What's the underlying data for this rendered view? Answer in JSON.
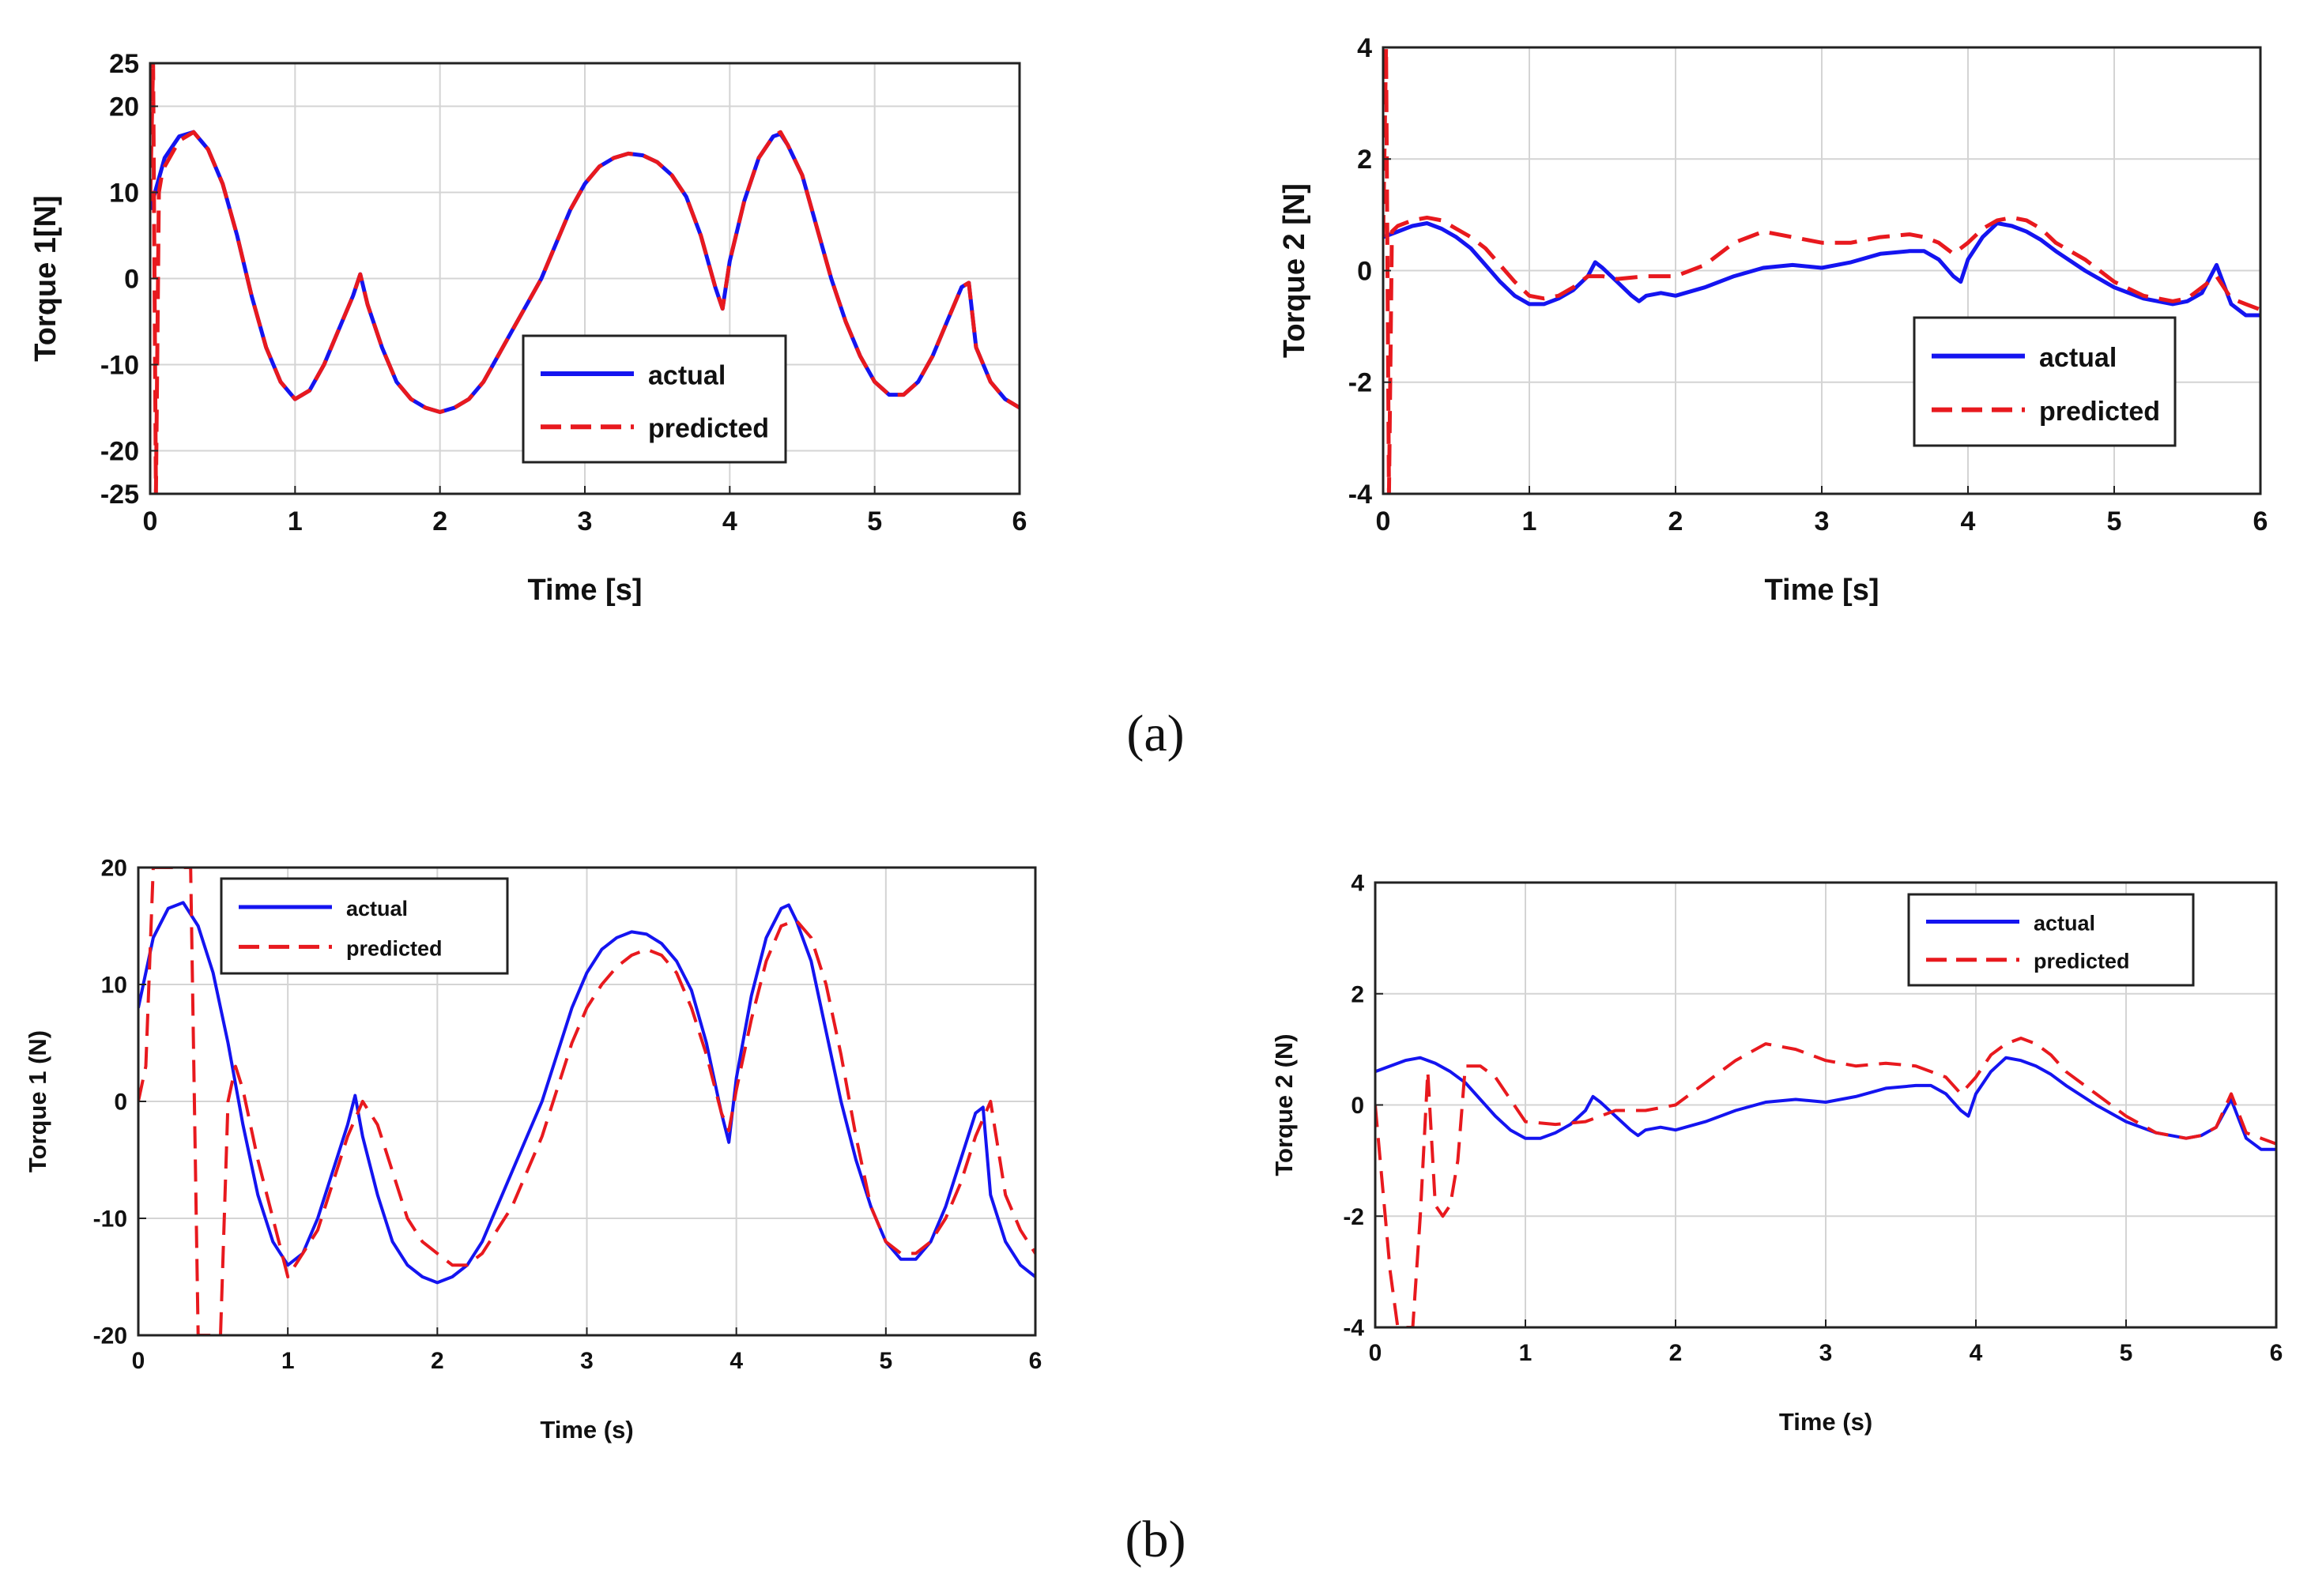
{
  "figure": {
    "caption_a": "(a)",
    "caption_b": "(b)"
  },
  "colors": {
    "actual": "#1414f0",
    "predicted": "#e8191e",
    "grid": "#d4d4d4",
    "axis": "#222222"
  },
  "chart_data": [
    {
      "id": "a1",
      "type": "line",
      "xlabel": "Time [s]",
      "ylabel": "Torque 1[N]",
      "xlim": [
        0,
        6
      ],
      "ylim": [
        -25,
        25
      ],
      "xticks": [
        "0",
        "1",
        "2",
        "3",
        "4",
        "5",
        "6"
      ],
      "yticks": [
        "-25",
        "-20",
        "-10",
        "0",
        "10",
        "20",
        "25"
      ],
      "ytick_values": [
        -25,
        -20,
        -10,
        0,
        10,
        20,
        25
      ],
      "legend": {
        "labels": [
          "actual",
          "predicted"
        ],
        "placement": "center-right"
      },
      "series": [
        {
          "name": "actual",
          "style": "solid",
          "x": [
            0,
            0.1,
            0.2,
            0.3,
            0.4,
            0.5,
            0.6,
            0.7,
            0.8,
            0.9,
            1.0,
            1.1,
            1.2,
            1.3,
            1.4,
            1.45,
            1.5,
            1.6,
            1.7,
            1.8,
            1.9,
            2.0,
            2.1,
            2.2,
            2.3,
            2.4,
            2.5,
            2.6,
            2.7,
            2.8,
            2.9,
            3.0,
            3.1,
            3.2,
            3.3,
            3.4,
            3.5,
            3.6,
            3.7,
            3.8,
            3.9,
            3.95,
            4.0,
            4.1,
            4.2,
            4.3,
            4.35,
            4.4,
            4.5,
            4.6,
            4.7,
            4.8,
            4.9,
            5.0,
            5.1,
            5.2,
            5.3,
            5.4,
            5.5,
            5.6,
            5.65,
            5.7,
            5.8,
            5.9,
            6.0
          ],
          "y": [
            8,
            14,
            16.5,
            17,
            15,
            11,
            5,
            -2,
            -8,
            -12,
            -14,
            -13,
            -10,
            -6,
            -2,
            0.5,
            -3,
            -8,
            -12,
            -14,
            -15,
            -15.5,
            -15,
            -14,
            -12,
            -9,
            -6,
            -3,
            0,
            4,
            8,
            11,
            13,
            14,
            14.5,
            14.3,
            13.5,
            12,
            9.5,
            5,
            -1,
            -3.5,
            2,
            9,
            14,
            16.5,
            16.8,
            15.5,
            12,
            6,
            0,
            -5,
            -9,
            -12,
            -13.5,
            -13.5,
            -12,
            -9,
            -5,
            -1,
            -0.5,
            -8,
            -12,
            -14,
            -15
          ]
        },
        {
          "name": "predicted",
          "style": "dashed",
          "x": [
            0,
            0.02,
            0.04,
            0.06,
            0.08,
            0.1,
            0.2,
            0.3,
            0.4,
            0.5,
            0.6,
            0.7,
            0.8,
            0.9,
            1.0,
            1.1,
            1.2,
            1.3,
            1.4,
            1.45,
            1.5,
            1.6,
            1.7,
            1.8,
            1.9,
            2.0,
            2.1,
            2.2,
            2.3,
            2.4,
            2.5,
            2.6,
            2.7,
            2.8,
            2.9,
            3.0,
            3.1,
            3.2,
            3.3,
            3.4,
            3.5,
            3.6,
            3.7,
            3.8,
            3.9,
            3.95,
            4.0,
            4.1,
            4.2,
            4.3,
            4.35,
            4.4,
            4.5,
            4.6,
            4.7,
            4.8,
            4.9,
            5.0,
            5.1,
            5.2,
            5.3,
            5.4,
            5.5,
            5.6,
            5.65,
            5.7,
            5.8,
            5.9,
            6.0
          ],
          "y": [
            9,
            25,
            -25,
            10,
            12,
            13,
            16,
            17,
            15,
            11,
            5,
            -2,
            -8,
            -12,
            -14,
            -13,
            -10,
            -6,
            -2,
            0.5,
            -3,
            -8,
            -12,
            -14,
            -15,
            -15.5,
            -15,
            -14,
            -12,
            -9,
            -6,
            -3,
            0,
            4,
            8,
            11,
            13,
            14,
            14.5,
            14.3,
            13.5,
            12,
            9.5,
            5,
            -1,
            -3.5,
            2,
            9,
            14,
            16.5,
            17,
            15.5,
            12,
            6,
            0,
            -5,
            -9,
            -12,
            -13.5,
            -13.5,
            -12,
            -9,
            -5,
            -1,
            -0.5,
            -8,
            -12,
            -14,
            -15
          ]
        }
      ]
    },
    {
      "id": "a2",
      "type": "line",
      "xlabel": "Time [s]",
      "ylabel": "Torque 2 [N]",
      "xlim": [
        0,
        6
      ],
      "ylim": [
        -4,
        4
      ],
      "xticks": [
        "0",
        "1",
        "2",
        "3",
        "4",
        "5",
        "6"
      ],
      "yticks": [
        "-4",
        "-2",
        "0",
        "2",
        "4"
      ],
      "ytick_values": [
        -4,
        -2,
        0,
        2,
        4
      ],
      "legend": {
        "labels": [
          "actual",
          "predicted"
        ],
        "placement": "lower-right"
      },
      "series": [
        {
          "name": "actual",
          "style": "solid",
          "x": [
            0,
            0.1,
            0.2,
            0.3,
            0.4,
            0.5,
            0.6,
            0.7,
            0.8,
            0.9,
            1.0,
            1.1,
            1.2,
            1.3,
            1.4,
            1.45,
            1.5,
            1.6,
            1.7,
            1.75,
            1.8,
            1.9,
            2.0,
            2.2,
            2.4,
            2.6,
            2.8,
            3.0,
            3.2,
            3.4,
            3.6,
            3.7,
            3.8,
            3.9,
            3.95,
            4.0,
            4.1,
            4.2,
            4.3,
            4.4,
            4.5,
            4.6,
            4.8,
            5.0,
            5.2,
            5.4,
            5.5,
            5.6,
            5.7,
            5.8,
            5.9,
            6.0
          ],
          "y": [
            0.6,
            0.7,
            0.8,
            0.85,
            0.75,
            0.6,
            0.4,
            0.1,
            -0.2,
            -0.45,
            -0.6,
            -0.6,
            -0.5,
            -0.35,
            -0.1,
            0.15,
            0.05,
            -0.2,
            -0.45,
            -0.55,
            -0.45,
            -0.4,
            -0.45,
            -0.3,
            -0.1,
            0.05,
            0.1,
            0.05,
            0.15,
            0.3,
            0.35,
            0.35,
            0.2,
            -0.1,
            -0.2,
            0.2,
            0.6,
            0.85,
            0.8,
            0.7,
            0.55,
            0.35,
            0,
            -0.3,
            -0.5,
            -0.6,
            -0.55,
            -0.4,
            0.1,
            -0.6,
            -0.8,
            -0.8
          ]
        },
        {
          "name": "predicted",
          "style": "dashed",
          "x": [
            0,
            0.02,
            0.04,
            0.06,
            0.1,
            0.2,
            0.3,
            0.4,
            0.5,
            0.6,
            0.7,
            0.8,
            0.9,
            1.0,
            1.1,
            1.2,
            1.3,
            1.4,
            1.5,
            1.6,
            1.8,
            2.0,
            2.2,
            2.4,
            2.6,
            2.8,
            3.0,
            3.2,
            3.4,
            3.6,
            3.7,
            3.8,
            3.9,
            4.0,
            4.1,
            4.2,
            4.3,
            4.4,
            4.5,
            4.6,
            4.8,
            5.0,
            5.2,
            5.4,
            5.5,
            5.6,
            5.7,
            5.8,
            5.9,
            6.0
          ],
          "y": [
            0.6,
            4,
            -4,
            0.7,
            0.8,
            0.9,
            0.95,
            0.9,
            0.75,
            0.6,
            0.4,
            0.1,
            -0.2,
            -0.45,
            -0.5,
            -0.45,
            -0.3,
            -0.1,
            -0.1,
            -0.15,
            -0.1,
            -0.1,
            0.1,
            0.5,
            0.7,
            0.6,
            0.5,
            0.5,
            0.6,
            0.65,
            0.6,
            0.5,
            0.3,
            0.5,
            0.75,
            0.9,
            0.95,
            0.9,
            0.75,
            0.5,
            0.2,
            -0.2,
            -0.45,
            -0.55,
            -0.5,
            -0.3,
            -0.1,
            -0.5,
            -0.6,
            -0.7
          ]
        }
      ]
    },
    {
      "id": "b1",
      "type": "line",
      "xlabel": "Time (s)",
      "ylabel": "Torque 1 (N)",
      "xlim": [
        0,
        6
      ],
      "ylim": [
        -20,
        20
      ],
      "xticks": [
        "0",
        "1",
        "2",
        "3",
        "4",
        "5",
        "6"
      ],
      "yticks": [
        "-20",
        "-10",
        "0",
        "10",
        "20"
      ],
      "ytick_values": [
        -20,
        -10,
        0,
        10,
        20
      ],
      "legend": {
        "labels": [
          "actual",
          "predicted"
        ],
        "placement": "top-left"
      },
      "series": [
        {
          "name": "actual",
          "style": "solid",
          "x": [
            0,
            0.1,
            0.2,
            0.3,
            0.4,
            0.5,
            0.6,
            0.7,
            0.8,
            0.9,
            1.0,
            1.1,
            1.2,
            1.3,
            1.4,
            1.45,
            1.5,
            1.6,
            1.7,
            1.8,
            1.9,
            2.0,
            2.1,
            2.2,
            2.3,
            2.4,
            2.5,
            2.6,
            2.7,
            2.8,
            2.9,
            3.0,
            3.1,
            3.2,
            3.3,
            3.4,
            3.5,
            3.6,
            3.7,
            3.8,
            3.9,
            3.95,
            4.0,
            4.1,
            4.2,
            4.3,
            4.35,
            4.4,
            4.5,
            4.6,
            4.7,
            4.8,
            4.9,
            5.0,
            5.1,
            5.2,
            5.3,
            5.4,
            5.5,
            5.6,
            5.65,
            5.7,
            5.8,
            5.9,
            6.0
          ],
          "y": [
            8,
            14,
            16.5,
            17,
            15,
            11,
            5,
            -2,
            -8,
            -12,
            -14,
            -13,
            -10,
            -6,
            -2,
            0.5,
            -3,
            -8,
            -12,
            -14,
            -15,
            -15.5,
            -15,
            -14,
            -12,
            -9,
            -6,
            -3,
            0,
            4,
            8,
            11,
            13,
            14,
            14.5,
            14.3,
            13.5,
            12,
            9.5,
            5,
            -1,
            -3.5,
            2,
            9,
            14,
            16.5,
            16.8,
            15.5,
            12,
            6,
            0,
            -5,
            -9,
            -12,
            -13.5,
            -13.5,
            -12,
            -9,
            -5,
            -1,
            -0.5,
            -8,
            -12,
            -14,
            -15
          ]
        },
        {
          "name": "predicted",
          "style": "dashed",
          "x": [
            0,
            0.05,
            0.1,
            0.15,
            0.35,
            0.4,
            0.45,
            0.55,
            0.6,
            0.65,
            0.7,
            0.8,
            0.9,
            1.0,
            1.1,
            1.2,
            1.3,
            1.4,
            1.5,
            1.6,
            1.7,
            1.8,
            1.9,
            2.0,
            2.1,
            2.2,
            2.3,
            2.4,
            2.5,
            2.6,
            2.7,
            2.8,
            2.9,
            3.0,
            3.1,
            3.2,
            3.3,
            3.4,
            3.5,
            3.6,
            3.7,
            3.8,
            3.9,
            3.95,
            4.0,
            4.1,
            4.2,
            4.3,
            4.4,
            4.5,
            4.6,
            4.7,
            4.8,
            4.9,
            5.0,
            5.1,
            5.2,
            5.3,
            5.4,
            5.5,
            5.6,
            5.7,
            5.8,
            5.9,
            6.0
          ],
          "y": [
            0,
            3,
            20,
            20,
            20,
            -20,
            -20,
            -20,
            0,
            3,
            1,
            -5,
            -10,
            -15,
            -13,
            -11,
            -7,
            -3,
            0,
            -2,
            -6,
            -10,
            -12,
            -13,
            -14,
            -14,
            -13,
            -11,
            -9,
            -6,
            -3,
            1,
            5,
            8,
            10,
            11.5,
            12.5,
            13,
            12.5,
            11,
            8,
            4,
            -1,
            -2.5,
            1,
            7,
            12,
            15,
            15.5,
            14,
            10,
            4,
            -3,
            -9,
            -12,
            -13,
            -13,
            -12,
            -10,
            -7,
            -3,
            0,
            -8,
            -11,
            -13
          ]
        }
      ]
    },
    {
      "id": "b2",
      "type": "line",
      "xlabel": "Time (s)",
      "ylabel": "Torque 2 (N)",
      "xlim": [
        0,
        6
      ],
      "ylim": [
        -4,
        4
      ],
      "xticks": [
        "0",
        "1",
        "2",
        "3",
        "4",
        "5",
        "6"
      ],
      "yticks": [
        "-4",
        "-2",
        "0",
        "2",
        "4"
      ],
      "ytick_values": [
        -4,
        -2,
        0,
        2,
        4
      ],
      "legend": {
        "labels": [
          "actual",
          "predicted"
        ],
        "placement": "top-right"
      },
      "series": [
        {
          "name": "actual",
          "style": "solid",
          "x": [
            0,
            0.1,
            0.2,
            0.3,
            0.4,
            0.5,
            0.6,
            0.7,
            0.8,
            0.9,
            1.0,
            1.1,
            1.2,
            1.3,
            1.4,
            1.45,
            1.5,
            1.6,
            1.7,
            1.75,
            1.8,
            1.9,
            2.0,
            2.2,
            2.4,
            2.6,
            2.8,
            3.0,
            3.2,
            3.4,
            3.6,
            3.7,
            3.8,
            3.9,
            3.95,
            4.0,
            4.1,
            4.2,
            4.3,
            4.4,
            4.5,
            4.6,
            4.8,
            5.0,
            5.2,
            5.4,
            5.5,
            5.6,
            5.7,
            5.8,
            5.9,
            6.0
          ],
          "y": [
            0.6,
            0.7,
            0.8,
            0.85,
            0.75,
            0.6,
            0.4,
            0.1,
            -0.2,
            -0.45,
            -0.6,
            -0.6,
            -0.5,
            -0.35,
            -0.1,
            0.15,
            0.05,
            -0.2,
            -0.45,
            -0.55,
            -0.45,
            -0.4,
            -0.45,
            -0.3,
            -0.1,
            0.05,
            0.1,
            0.05,
            0.15,
            0.3,
            0.35,
            0.35,
            0.2,
            -0.1,
            -0.2,
            0.2,
            0.6,
            0.85,
            0.8,
            0.7,
            0.55,
            0.35,
            0,
            -0.3,
            -0.5,
            -0.6,
            -0.55,
            -0.4,
            0.1,
            -0.6,
            -0.8,
            -0.8
          ]
        },
        {
          "name": "predicted",
          "style": "dashed",
          "x": [
            0,
            0.05,
            0.1,
            0.15,
            0.25,
            0.3,
            0.35,
            0.4,
            0.45,
            0.5,
            0.55,
            0.6,
            0.7,
            0.8,
            0.9,
            1.0,
            1.2,
            1.4,
            1.6,
            1.8,
            2.0,
            2.2,
            2.4,
            2.6,
            2.8,
            3.0,
            3.2,
            3.4,
            3.6,
            3.8,
            3.9,
            4.0,
            4.1,
            4.2,
            4.3,
            4.4,
            4.5,
            4.6,
            4.8,
            5.0,
            5.2,
            5.4,
            5.5,
            5.6,
            5.7,
            5.8,
            5.9,
            6.0
          ],
          "y": [
            0,
            -1.5,
            -3,
            -4,
            -4,
            -2,
            0.6,
            -1.8,
            -2,
            -1.8,
            -1,
            0.7,
            0.7,
            0.5,
            0.1,
            -0.3,
            -0.35,
            -0.3,
            -0.1,
            -0.1,
            0,
            0.4,
            0.8,
            1.1,
            1,
            0.8,
            0.7,
            0.75,
            0.7,
            0.5,
            0.2,
            0.5,
            0.9,
            1.1,
            1.2,
            1.1,
            0.9,
            0.6,
            0.2,
            -0.2,
            -0.5,
            -0.6,
            -0.55,
            -0.4,
            0.2,
            -0.5,
            -0.6,
            -0.7
          ]
        }
      ]
    }
  ]
}
